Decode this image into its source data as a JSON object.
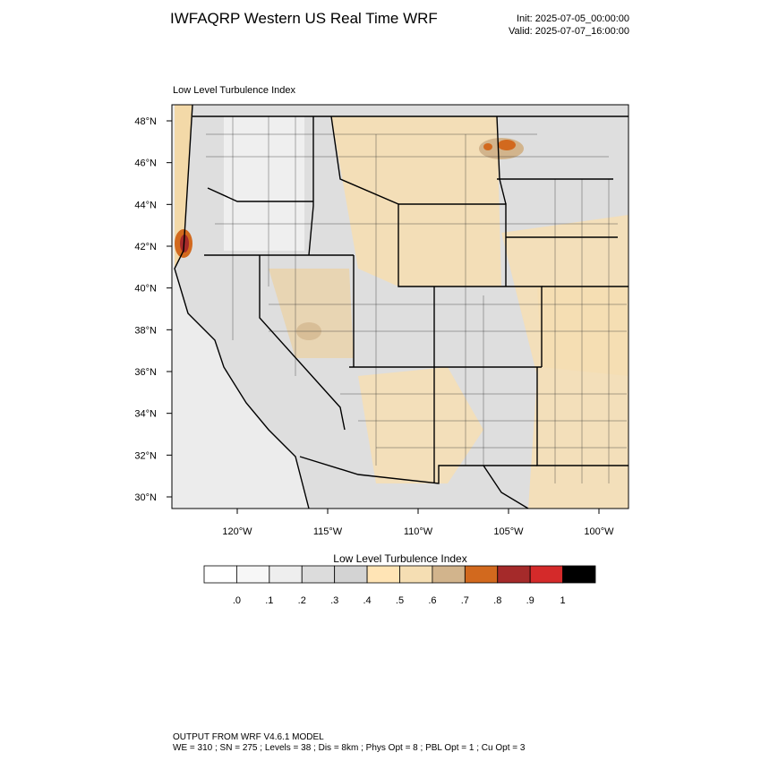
{
  "header": {
    "title": "IWFAQRP Western US Real Time WRF",
    "init": "Init: 2025-07-05_00:00:00",
    "valid": "Valid: 2025-07-07_16:00:00"
  },
  "map": {
    "subtitle": "Low Level Turbulence Index",
    "lat_ticks": [
      "48°N",
      "46°N",
      "44°N",
      "42°N",
      "40°N",
      "38°N",
      "36°N",
      "34°N",
      "32°N",
      "30°N"
    ],
    "lon_ticks": [
      "120°W",
      "115°W",
      "110°W",
      "105°W",
      "100°W"
    ]
  },
  "colorbar": {
    "title": "Low Level Turbulence Index",
    "labels": [
      ".0",
      ".1",
      ".2",
      ".3",
      ".4",
      ".5",
      ".6",
      ".7",
      ".8",
      ".9",
      "1"
    ],
    "colors": [
      "#ffffff",
      "#f7f7f7",
      "#eeeeee",
      "#dcdcdc",
      "#d3d3d3",
      "#ffe4b5",
      "#f5deb3",
      "#d2b48c",
      "#d2691e",
      "#a52a2a",
      "#d42a2a",
      "#000000"
    ]
  },
  "footer": {
    "line1": "OUTPUT FROM WRF V4.6.1 MODEL",
    "line2": "WE = 310 ; SN = 275 ; Levels = 38 ; Dis = 8km ; Phys Opt = 8 ; PBL Opt = 1 ; Cu Opt = 3"
  }
}
